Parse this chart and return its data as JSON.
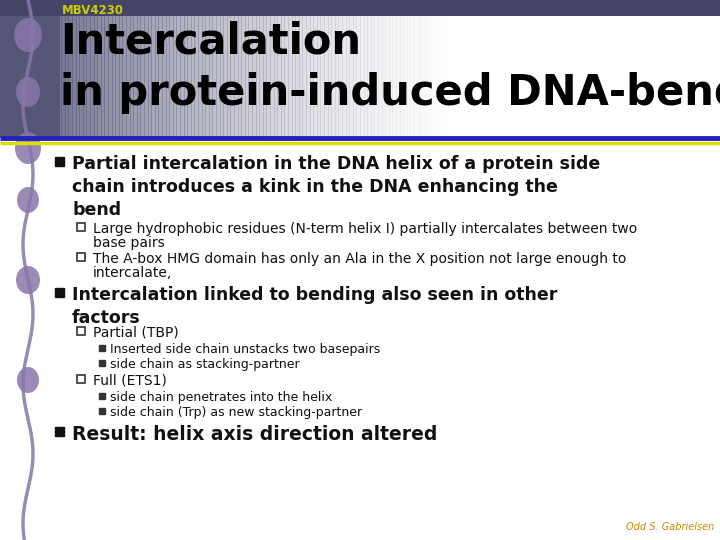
{
  "title_course": "MBV4230",
  "title_line1": "Intercalation",
  "title_line2": "in protein-induced DNA-bending",
  "bg_color": "#ffffff",
  "course_color": "#cccc00",
  "title_text_color": "#000000",
  "separator_color1": "#2222bb",
  "separator_color2": "#dddd00",
  "left_deco_color": "#8877aa",
  "bullet1_text": "Partial intercalation in the DNA helix of a protein side\nchain introduces a kink in the DNA enhancing the\nbend",
  "sub1_1_line1": "Large hydrophobic residues (N-term helix I) partially intercalates between two",
  "sub1_1_line2": "base pairs",
  "sub1_2_line1": "The A-box HMG domain has only an Ala in the X position not large enough to",
  "sub1_2_line2": "intercalate,",
  "bullet2_text": "Intercalation linked to bending also seen in other\nfactors",
  "sub2_1": "Partial (TBP)",
  "sub2_1a": "Inserted side chain unstacks two basepairs",
  "sub2_1b": "side chain as stacking-partner",
  "sub2_2": "Full (ETS1)",
  "sub2_2a": "side chain penetrates into the helix",
  "sub2_2b": "side chain (Trp) as new stacking-partner",
  "bullet3_text": "Result: helix axis direction altered",
  "footer_text": "Odd S. Gabrielsen",
  "header_dark_color": "#555577",
  "header_mid_color": "#9988aa"
}
